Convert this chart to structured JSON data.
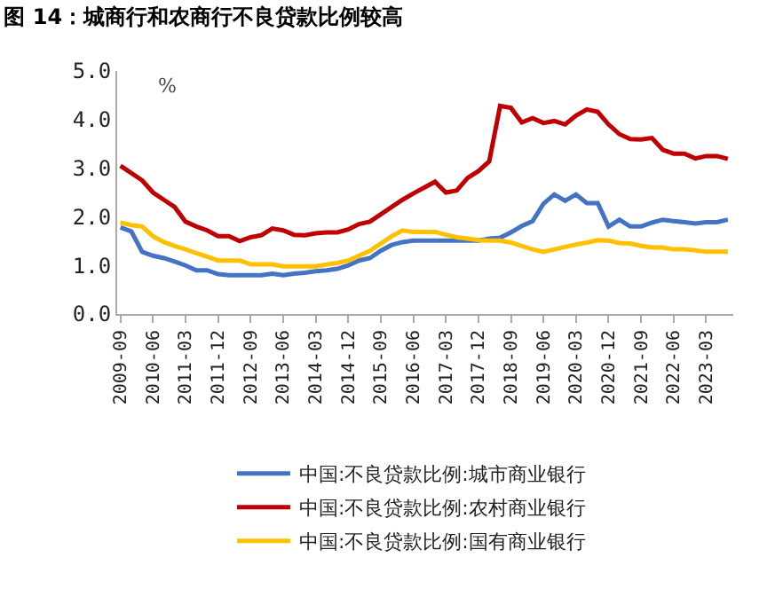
{
  "chart_data": {
    "type": "line",
    "title": "图 14：城商行和农商行不良贷款比例较高",
    "ylabel": "%",
    "categories": [
      "2009-09",
      null,
      null,
      "2010-06",
      null,
      null,
      "2011-03",
      null,
      null,
      "2011-12",
      null,
      null,
      "2012-09",
      null,
      null,
      "2013-06",
      null,
      null,
      "2014-03",
      null,
      null,
      "2014-12",
      null,
      null,
      "2015-09",
      null,
      null,
      "2016-06",
      null,
      null,
      "2017-03",
      null,
      null,
      "2017-12",
      null,
      null,
      "2018-09",
      null,
      null,
      "2019-06",
      null,
      null,
      "2020-03",
      null,
      null,
      "2020-12",
      null,
      null,
      "2021-09",
      null,
      null,
      "2022-06",
      null,
      null,
      "2023-03",
      null,
      null
    ],
    "series": [
      {
        "name": "中国:不良贷款比例:城市商业银行",
        "color": "#4472c4",
        "values": [
          1.78,
          1.7,
          1.28,
          1.2,
          1.15,
          1.08,
          1.0,
          0.9,
          0.9,
          0.82,
          0.8,
          0.8,
          0.8,
          0.8,
          0.83,
          0.8,
          0.83,
          0.85,
          0.88,
          0.9,
          0.93,
          1.0,
          1.1,
          1.15,
          1.3,
          1.42,
          1.48,
          1.51,
          1.51,
          1.51,
          1.51,
          1.51,
          1.51,
          1.51,
          1.55,
          1.57,
          1.68,
          1.81,
          1.91,
          2.27,
          2.46,
          2.33,
          2.46,
          2.28,
          2.28,
          1.8,
          1.94,
          1.8,
          1.8,
          1.88,
          1.94,
          1.91,
          1.89,
          1.86,
          1.89,
          1.89,
          1.94
        ]
      },
      {
        "name": "中国:不良贷款比例:农村商业银行",
        "color": "#c00000",
        "values": [
          3.05,
          2.9,
          2.75,
          2.5,
          2.35,
          2.2,
          1.9,
          1.8,
          1.72,
          1.6,
          1.6,
          1.5,
          1.58,
          1.62,
          1.76,
          1.72,
          1.63,
          1.62,
          1.66,
          1.68,
          1.68,
          1.74,
          1.85,
          1.9,
          2.05,
          2.2,
          2.35,
          2.48,
          2.6,
          2.72,
          2.5,
          2.54,
          2.8,
          2.94,
          3.14,
          4.28,
          4.24,
          3.94,
          4.03,
          3.93,
          3.97,
          3.9,
          4.08,
          4.21,
          4.16,
          3.9,
          3.7,
          3.6,
          3.59,
          3.62,
          3.38,
          3.3,
          3.3,
          3.2,
          3.25,
          3.25,
          3.19
        ]
      },
      {
        "name": "中国:不良贷款比例:国有商业银行",
        "color": "#ffc000",
        "values": [
          1.88,
          1.83,
          1.8,
          1.6,
          1.48,
          1.4,
          1.33,
          1.25,
          1.18,
          1.1,
          1.1,
          1.1,
          1.02,
          1.02,
          1.02,
          0.98,
          0.98,
          0.98,
          0.98,
          1.02,
          1.05,
          1.1,
          1.2,
          1.3,
          1.45,
          1.6,
          1.72,
          1.69,
          1.69,
          1.69,
          1.63,
          1.58,
          1.55,
          1.52,
          1.51,
          1.51,
          1.47,
          1.4,
          1.33,
          1.28,
          1.33,
          1.38,
          1.43,
          1.47,
          1.52,
          1.51,
          1.46,
          1.45,
          1.4,
          1.37,
          1.37,
          1.33,
          1.33,
          1.31,
          1.28,
          1.28,
          1.28
        ]
      }
    ],
    "ylim": [
      0,
      5
    ],
    "yticks": [
      {
        "value": 0,
        "label": "0.0"
      },
      {
        "value": 1,
        "label": "1.0"
      },
      {
        "value": 2,
        "label": "2.0"
      },
      {
        "value": 3,
        "label": "3.0"
      },
      {
        "value": 4,
        "label": "4.0"
      },
      {
        "value": 5,
        "label": "5.0"
      }
    ],
    "legend": "bottom",
    "marker": "none",
    "line_style": "solid"
  }
}
